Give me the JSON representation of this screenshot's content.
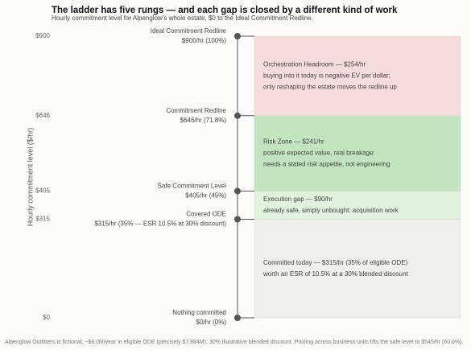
{
  "chart_data": {
    "type": "ladder",
    "title": "The ladder has five rungs — and each gap is closed by a different kind of work",
    "subtitle": "Hourly commitment level for Alpenglow's whole estate, $0 to the Ideal Commitment Redline.",
    "y_label": "Hourly commitment level ($/hr)",
    "ylim": [
      0,
      900
    ],
    "yticks": [
      {
        "value": 0,
        "label": "$0"
      },
      {
        "value": 315,
        "label": "$315"
      },
      {
        "value": 405,
        "label": "$405"
      },
      {
        "value": 646,
        "label": "$646"
      },
      {
        "value": 900,
        "label": "$900"
      }
    ],
    "rungs": [
      {
        "name": "Ideal Commitment Redline",
        "label": "$900/hr (100%)",
        "value": 900
      },
      {
        "name": "Commitment Redline",
        "label": "$646/hr (71.8%)",
        "value": 646
      },
      {
        "name": "Safe Commitment Level",
        "label": "$405/hr (45%)",
        "value": 405
      },
      {
        "name": "Covered ODE",
        "label": "$315/hr (35% — ESR 10.5% at 30% discount)",
        "value": 315
      },
      {
        "name": "Nothing committed",
        "label": "$0/hr (0%)",
        "value": 0
      }
    ],
    "bands": [
      {
        "value": 315,
        "color": "#efefee",
        "lines": [
          "Committed today — $315/hr (35% of eligible ODE)",
          "worth an ESR of 10.5% at a 30% blended discount"
        ]
      },
      {
        "value": 90,
        "color": "#e1f2dd",
        "lines": [
          "Execution gap — $90/hr",
          "already safe, simply unbought: acquisition work"
        ]
      },
      {
        "value": 241,
        "color": "#c2e5bf",
        "lines": [
          "Risk Zone — $241/hr",
          "positive expected value, real breakage:",
          "needs a stated risk appetite, not engineering"
        ]
      },
      {
        "value": 254,
        "color": "#f6dcdb",
        "lines": [
          "Orchestration Headroom — $254/hr",
          "buying into it today is negative EV per dollar;",
          "only reshaping the estate moves the redline up"
        ]
      }
    ],
    "footnote": "Alpenglow Outfitters is fictional; ~$8.0M/year in eligible ODE (precisely $7.884M); 30% illustrative blended discount. Pooling across business units lifts the safe level to $545/hr (60.6%)."
  }
}
